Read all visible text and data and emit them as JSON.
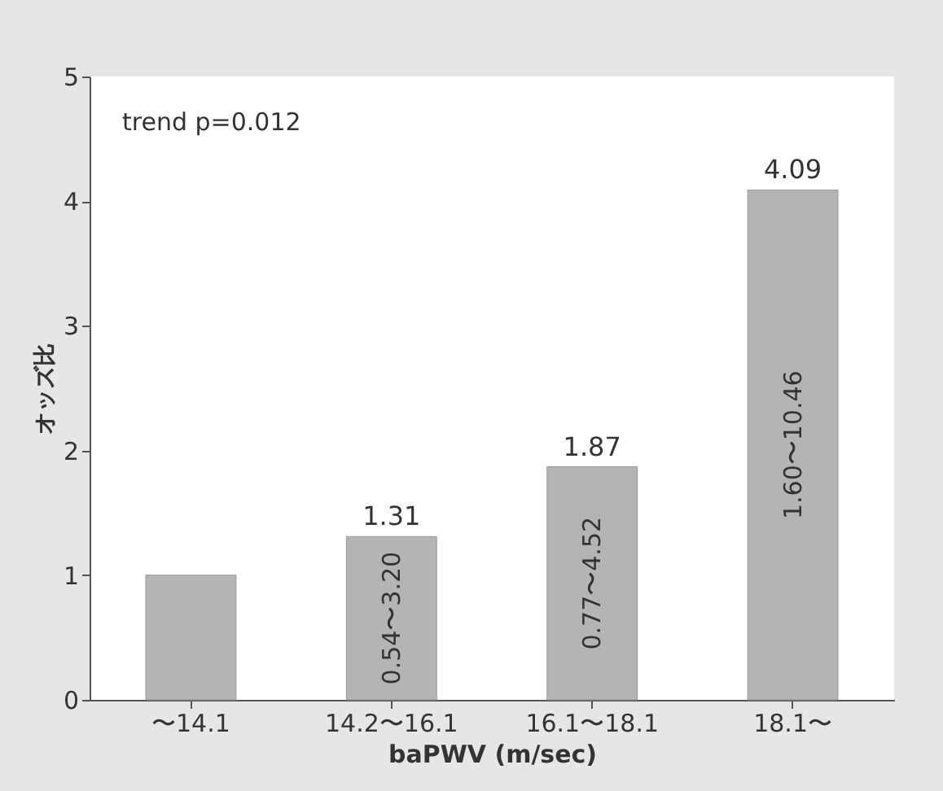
{
  "chart_data": {
    "type": "bar",
    "xlabel": "baPWV (m/sec)",
    "ylabel": "オッズ比",
    "categories": [
      "〜14.1",
      "14.2〜16.1",
      "16.1〜18.1",
      "18.1〜"
    ],
    "values": [
      1,
      1.31,
      1.87,
      4.09
    ],
    "value_labels": [
      null,
      "1.31",
      "1.87",
      "4.09"
    ],
    "color": "#b4b4b4",
    "ylim": [
      0,
      5
    ],
    "yticks": [
      0,
      1,
      2,
      3,
      4,
      5
    ],
    "grid": false,
    "annotations": [
      "trend p=0.012",
      "0.54〜3.20",
      "0.77〜4.52",
      "1.60〜10.46"
    ]
  }
}
